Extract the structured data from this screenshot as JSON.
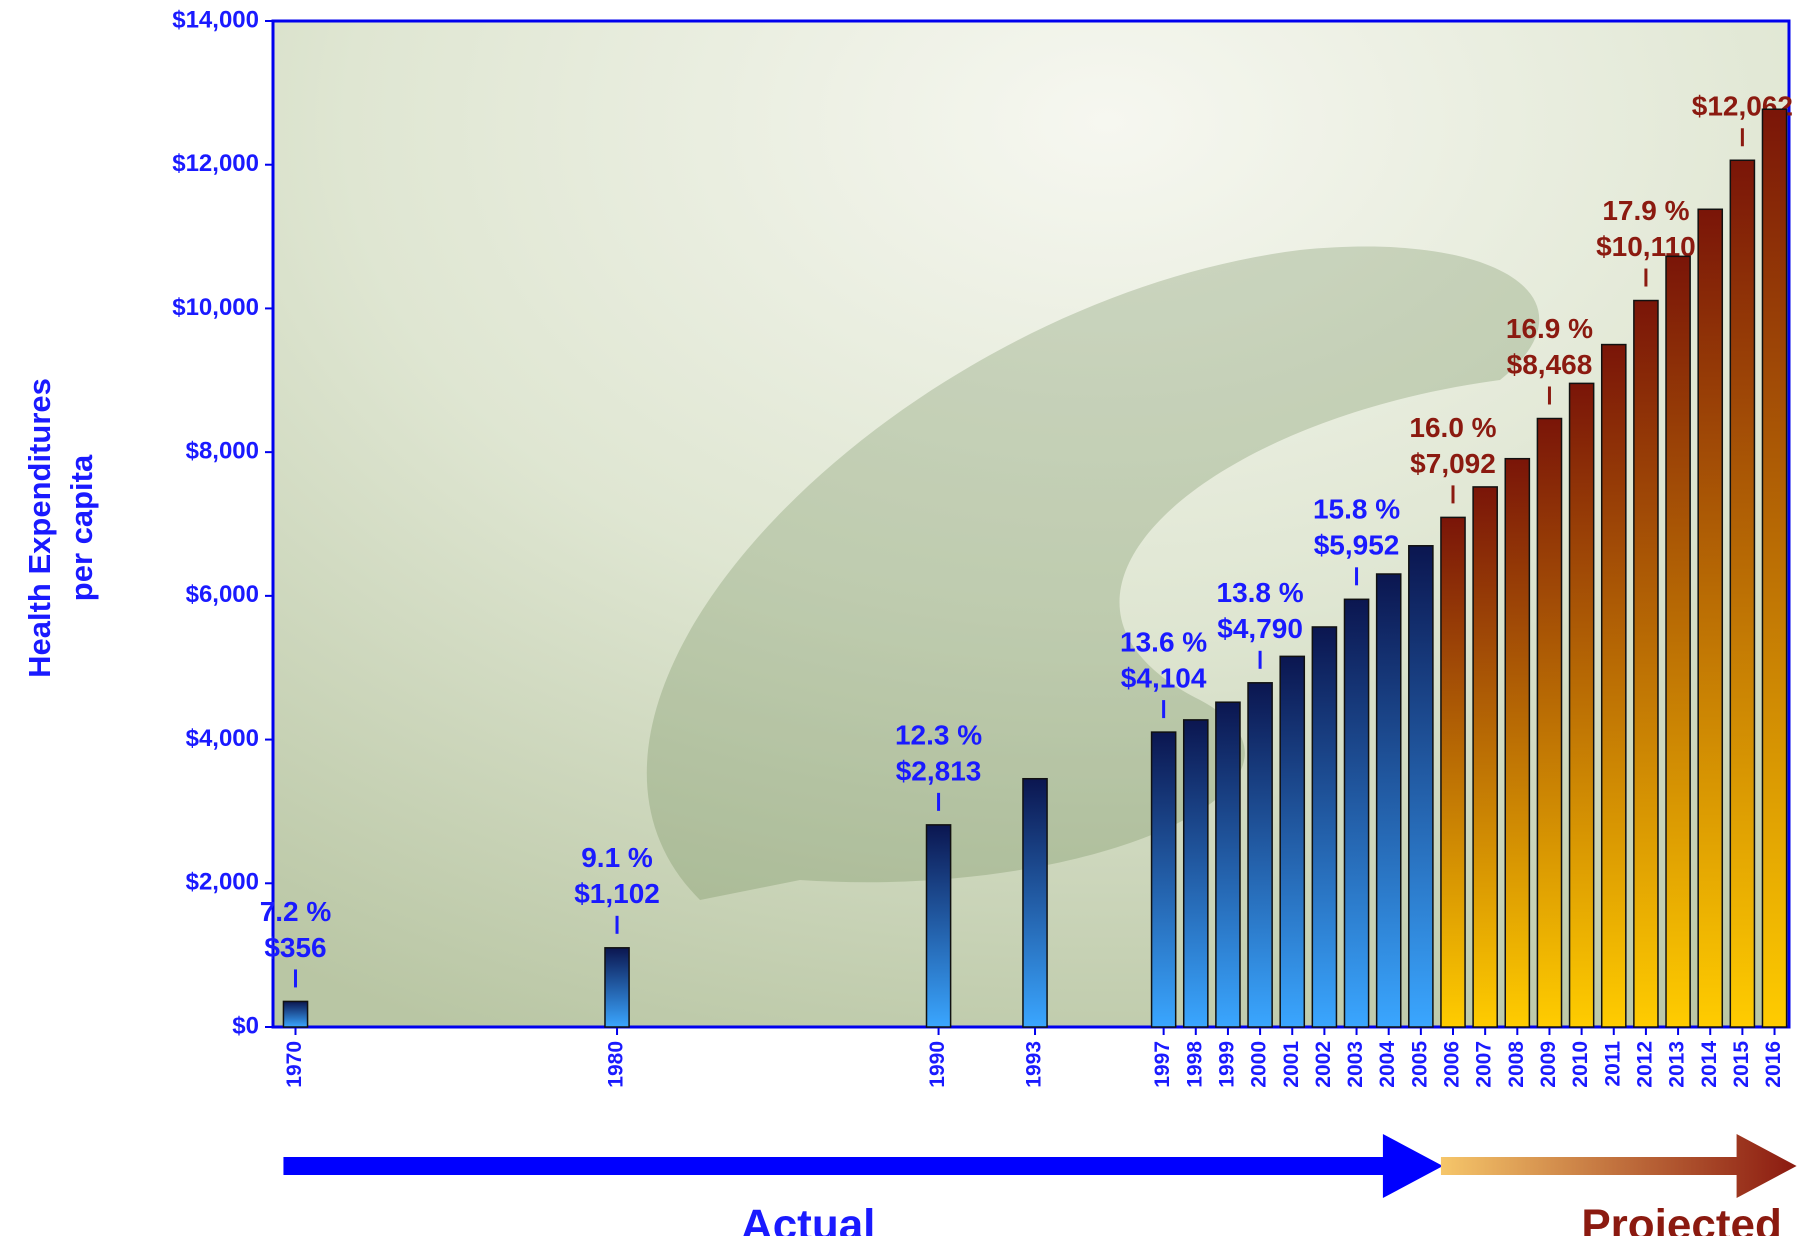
{
  "chart_data": {
    "type": "bar",
    "ylabel": [
      "Health Expenditures",
      "per capita"
    ],
    "xlim": [
      1969.3,
      2016.45
    ],
    "xticks": [
      1970,
      1980,
      1990,
      1993,
      1997,
      1998,
      1999,
      2000,
      2001,
      2002,
      2003,
      2004,
      2005,
      2006,
      2007,
      2008,
      2009,
      2010,
      2011,
      2012,
      2013,
      2014,
      2015,
      2016
    ],
    "ylim": [
      0,
      14000
    ],
    "yticks": [
      {
        "value": 0,
        "label": "$0"
      },
      {
        "value": 2000,
        "label": "$2,000"
      },
      {
        "value": 4000,
        "label": "$4,000"
      },
      {
        "value": 6000,
        "label": "$6,000"
      },
      {
        "value": 8000,
        "label": "$8,000"
      },
      {
        "value": 10000,
        "label": "$10,000"
      },
      {
        "value": 12000,
        "label": "$12,000"
      },
      {
        "value": 14000,
        "label": "$14,000"
      }
    ],
    "series": [
      {
        "name": "Actual",
        "color": "#1a1aff",
        "x": [
          1970,
          1980,
          1990,
          1993,
          1997,
          1998,
          1999,
          2000,
          2001,
          2002,
          2003,
          2004,
          2005
        ],
        "values": [
          356,
          1102,
          2813,
          3455,
          4104,
          4274,
          4520,
          4790,
          5158,
          5567,
          5952,
          6304,
          6697
        ],
        "value_labels": [
          "$356",
          "$1,102",
          "$2,813",
          null,
          "$4,104",
          null,
          null,
          "$4,790",
          null,
          null,
          "$5,952",
          null,
          null
        ],
        "percent_labels": [
          "7.2 %",
          "9.1 %",
          "12.3 %",
          null,
          "13.6 %",
          null,
          null,
          "13.8 %",
          null,
          null,
          "15.8 %",
          null,
          null
        ]
      },
      {
        "name": "Projected",
        "color": "#8b1a10",
        "x": [
          2006,
          2007,
          2008,
          2009,
          2010,
          2011,
          2012,
          2013,
          2014,
          2015,
          2016
        ],
        "values": [
          7092,
          7516,
          7909,
          8468,
          8957,
          9497,
          10110,
          10725,
          11380,
          12062,
          12772
        ],
        "value_labels": [
          "$7,092",
          null,
          null,
          "$8,468",
          null,
          null,
          "$10,110",
          null,
          null,
          "$12,062",
          null
        ],
        "percent_labels": [
          "16.0 %",
          null,
          null,
          "16.9 %",
          null,
          null,
          "17.9 %",
          null,
          null,
          null,
          null
        ]
      }
    ]
  }
}
